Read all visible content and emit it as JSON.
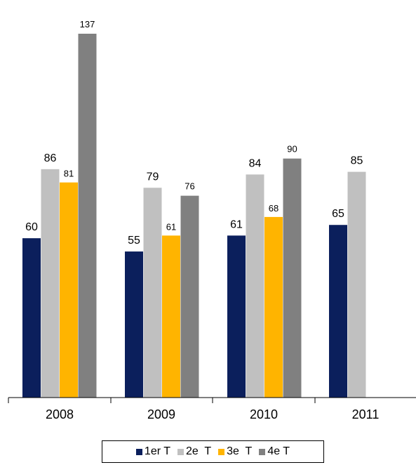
{
  "chart_data": {
    "type": "bar",
    "categories": [
      "2008",
      "2009",
      "2010",
      "2011"
    ],
    "series": [
      {
        "name": "1er T",
        "color": "#0b1f5c",
        "values": [
          60,
          55,
          61,
          65
        ]
      },
      {
        "name": "2e  T",
        "color": "#c0c0c0",
        "values": [
          86,
          79,
          84,
          85
        ]
      },
      {
        "name": "3e  T",
        "color": "#ffb400",
        "values": [
          81,
          61,
          68,
          null
        ]
      },
      {
        "name": "4e T",
        "color": "#808080",
        "values": [
          137,
          76,
          90,
          null
        ]
      }
    ],
    "ylim": [
      0,
      140
    ],
    "grid": false,
    "legend_position": "bottom"
  }
}
